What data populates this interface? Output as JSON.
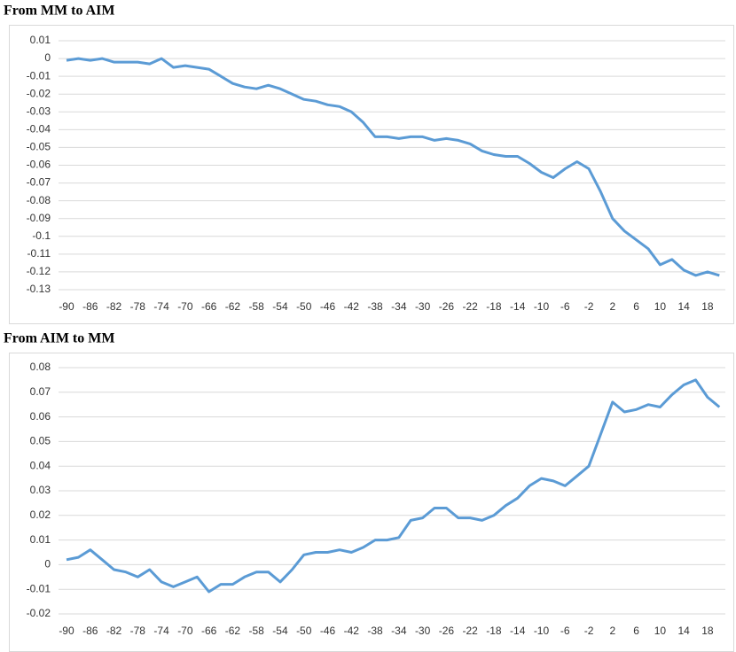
{
  "chart_data": [
    {
      "type": "line",
      "title": "From MM to AIM",
      "color": "#5b9bd5",
      "grid": true,
      "x": [
        -90,
        -88,
        -86,
        -84,
        -82,
        -80,
        -78,
        -76,
        -74,
        -72,
        -70,
        -68,
        -66,
        -64,
        -62,
        -60,
        -58,
        -56,
        -54,
        -52,
        -50,
        -48,
        -46,
        -44,
        -42,
        -40,
        -38,
        -36,
        -34,
        -32,
        -30,
        -28,
        -26,
        -24,
        -22,
        -20,
        -18,
        -16,
        -14,
        -12,
        -10,
        -8,
        -6,
        -4,
        -2,
        0,
        2,
        4,
        6,
        8,
        10,
        12,
        14,
        16,
        18,
        20
      ],
      "values": [
        -0.001,
        0,
        -0.001,
        0,
        -0.002,
        -0.002,
        -0.002,
        -0.003,
        0,
        -0.005,
        -0.004,
        -0.005,
        -0.006,
        -0.01,
        -0.014,
        -0.016,
        -0.017,
        -0.015,
        -0.017,
        -0.02,
        -0.023,
        -0.024,
        -0.026,
        -0.027,
        -0.03,
        -0.036,
        -0.044,
        -0.044,
        -0.045,
        -0.044,
        -0.044,
        -0.046,
        -0.045,
        -0.046,
        -0.048,
        -0.052,
        -0.054,
        -0.055,
        -0.055,
        -0.059,
        -0.064,
        -0.067,
        -0.062,
        -0.058,
        -0.062,
        -0.075,
        -0.09,
        -0.097,
        -0.102,
        -0.107,
        -0.116,
        -0.113,
        -0.119,
        -0.122,
        -0.12,
        -0.122
      ],
      "xlim": [
        -92,
        21
      ],
      "xticks": [
        -90,
        -86,
        -82,
        -78,
        -74,
        -70,
        -66,
        -62,
        -58,
        -54,
        -50,
        -46,
        -42,
        -38,
        -34,
        -30,
        -26,
        -22,
        -18,
        -14,
        -10,
        -6,
        -2,
        2,
        6,
        10,
        14,
        18
      ],
      "ylim": [
        -0.135,
        0.015
      ],
      "yticks": [
        0.01,
        0,
        -0.01,
        -0.02,
        -0.03,
        -0.04,
        -0.05,
        -0.06,
        -0.07,
        -0.08,
        -0.09,
        -0.1,
        -0.11,
        -0.12,
        -0.13
      ]
    },
    {
      "type": "line",
      "title": "From AIM to MM",
      "color": "#5b9bd5",
      "grid": true,
      "x": [
        -90,
        -88,
        -86,
        -84,
        -82,
        -80,
        -78,
        -76,
        -74,
        -72,
        -70,
        -68,
        -66,
        -64,
        -62,
        -60,
        -58,
        -56,
        -54,
        -52,
        -50,
        -48,
        -46,
        -44,
        -42,
        -40,
        -38,
        -36,
        -34,
        -32,
        -30,
        -28,
        -26,
        -24,
        -22,
        -20,
        -18,
        -16,
        -14,
        -12,
        -10,
        -8,
        -6,
        -4,
        -2,
        0,
        2,
        4,
        6,
        8,
        10,
        12,
        14,
        16,
        18,
        20
      ],
      "values": [
        0.002,
        0.003,
        0.006,
        0.002,
        -0.002,
        -0.003,
        -0.005,
        -0.002,
        -0.007,
        -0.009,
        -0.007,
        -0.005,
        -0.011,
        -0.008,
        -0.008,
        -0.005,
        -0.003,
        -0.003,
        -0.007,
        -0.002,
        0.004,
        0.005,
        0.005,
        0.006,
        0.005,
        0.007,
        0.01,
        0.01,
        0.011,
        0.018,
        0.019,
        0.023,
        0.023,
        0.019,
        0.019,
        0.018,
        0.02,
        0.024,
        0.027,
        0.032,
        0.035,
        0.034,
        0.032,
        0.036,
        0.04,
        0.053,
        0.066,
        0.062,
        0.063,
        0.065,
        0.064,
        0.069,
        0.073,
        0.075,
        0.068,
        0.064
      ],
      "xlim": [
        -92,
        21
      ],
      "xticks": [
        -90,
        -86,
        -82,
        -78,
        -74,
        -70,
        -66,
        -62,
        -58,
        -54,
        -50,
        -46,
        -42,
        -38,
        -34,
        -30,
        -26,
        -22,
        -18,
        -14,
        -10,
        -6,
        -2,
        2,
        6,
        10,
        14,
        18
      ],
      "ylim": [
        -0.022,
        0.082
      ],
      "yticks": [
        0.08,
        0.07,
        0.06,
        0.05,
        0.04,
        0.03,
        0.02,
        0.01,
        0,
        -0.01,
        -0.02
      ]
    }
  ]
}
